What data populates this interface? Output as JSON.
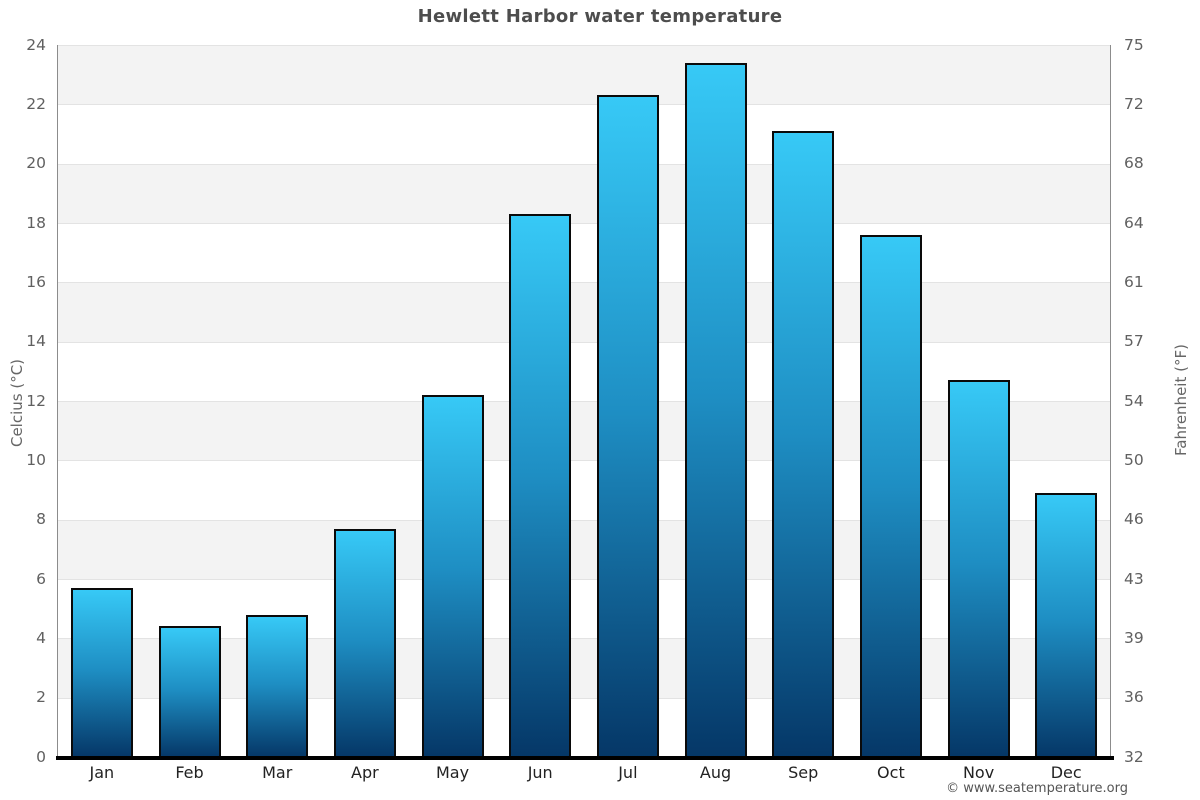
{
  "footer": {
    "credit": "© www.seatemperature.org"
  },
  "chart_data": {
    "type": "bar",
    "title": "Hewlett Harbor water temperature",
    "categories": [
      "Jan",
      "Feb",
      "Mar",
      "Apr",
      "May",
      "Jun",
      "Jul",
      "Aug",
      "Sep",
      "Oct",
      "Nov",
      "Dec"
    ],
    "values": [
      5.7,
      4.4,
      4.8,
      7.7,
      12.2,
      18.3,
      22.3,
      23.4,
      21.1,
      17.6,
      12.7,
      8.9
    ],
    "units": "°C",
    "ylabel_left": "Celcius (°C)",
    "ylabel_right": "Fahrenheit (°F)",
    "xlabel": "",
    "ylim": [
      0,
      24
    ],
    "yticks_left": [
      0,
      2,
      4,
      6,
      8,
      10,
      12,
      14,
      16,
      18,
      20,
      22,
      24
    ],
    "yticks_right": [
      32,
      36,
      39,
      43,
      46,
      50,
      54,
      57,
      61,
      64,
      68,
      72,
      75
    ],
    "grid": "horizontal-bands-alternating",
    "legend": "none",
    "colors": {
      "bar_gradient_top": "#37c9f6",
      "bar_gradient_mid": "#1e8ec3",
      "bar_gradient_bottom": "#053767",
      "bar_border": "#0a0a0a",
      "band_gray": "#f3f3f3",
      "band_white": "#ffffff",
      "gridline": "#e3e3e3",
      "axis_line": "#8c8c8c",
      "baseline": "#000000",
      "title_color": "#4d4d4d",
      "tick_color": "#606060",
      "month_label_color": "#222222",
      "axis_label_color": "#666666",
      "footer_color": "#555555"
    }
  }
}
